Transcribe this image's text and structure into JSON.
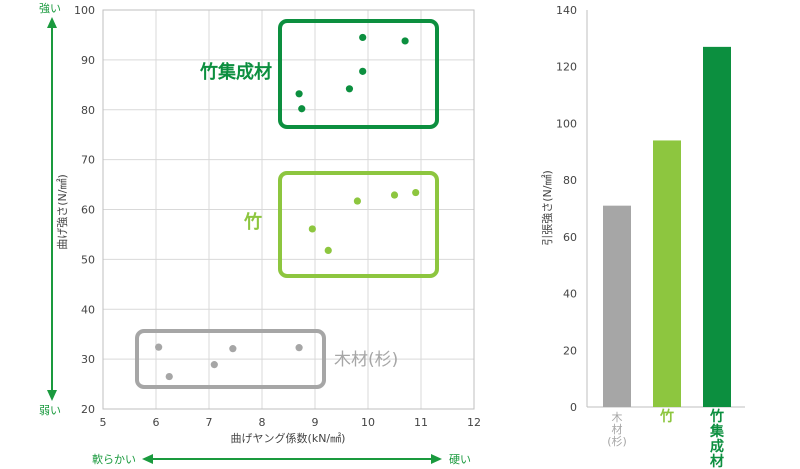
{
  "colors": {
    "wood": "#a6a6a6",
    "bamboo": "#8dc63f",
    "laminated_bamboo": "#0c8f3f",
    "axis_text": "#444444",
    "grid": "#d9d9d9",
    "arrow": "#1a9a3e"
  },
  "chart_data": [
    {
      "type": "scatter",
      "xlabel": "曲げヤング係数(kN/㎟)",
      "ylabel": "曲げ強さ(N/㎟)",
      "xlim": [
        5,
        12
      ],
      "ylim": [
        20,
        100
      ],
      "xticks": [
        5,
        6,
        7,
        8,
        9,
        10,
        11,
        12
      ],
      "yticks": [
        20,
        30,
        40,
        50,
        60,
        70,
        80,
        90,
        100
      ],
      "grid": true,
      "y_scale_labels": {
        "top": "強い",
        "bottom": "弱い"
      },
      "x_scale_labels": {
        "left": "軟らかい",
        "right": "硬い"
      },
      "series": [
        {
          "name": "竹集成材",
          "color": "#0c8f3f",
          "points": [
            [
              8.7,
              83.2
            ],
            [
              8.75,
              80.2
            ],
            [
              9.65,
              84.2
            ],
            [
              9.9,
              94.5
            ],
            [
              9.9,
              87.7
            ],
            [
              10.7,
              93.8
            ]
          ]
        },
        {
          "name": "竹",
          "color": "#8dc63f",
          "points": [
            [
              8.95,
              56.1
            ],
            [
              9.25,
              51.8
            ],
            [
              9.8,
              61.7
            ],
            [
              10.5,
              62.9
            ],
            [
              10.9,
              63.4
            ]
          ]
        },
        {
          "name": "木材(杉)",
          "color": "#a6a6a6",
          "points": [
            [
              6.05,
              32.4
            ],
            [
              6.25,
              26.5
            ],
            [
              7.1,
              28.9
            ],
            [
              7.45,
              32.1
            ],
            [
              8.7,
              32.3
            ]
          ]
        }
      ]
    },
    {
      "type": "bar",
      "ylabel": "引張強さ(N/㎟)",
      "ylim": [
        0,
        140
      ],
      "yticks": [
        0,
        20,
        40,
        60,
        80,
        100,
        120,
        140
      ],
      "grid": false,
      "categories": [
        "木材(杉)",
        "竹",
        "竹集成材"
      ],
      "values": [
        71,
        94,
        127
      ],
      "colors": [
        "#a6a6a6",
        "#8dc63f",
        "#0c8f3f"
      ]
    }
  ]
}
